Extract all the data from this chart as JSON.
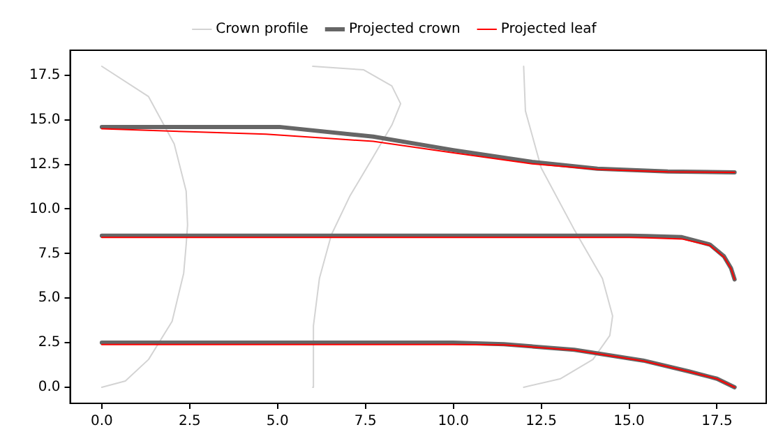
{
  "chart_data": {
    "type": "line",
    "xlim": [
      -0.9,
      18.9
    ],
    "ylim": [
      -0.9,
      18.9
    ],
    "xticks": [
      {
        "value": 0,
        "label": "0.0"
      },
      {
        "value": 2.5,
        "label": "2.5"
      },
      {
        "value": 5,
        "label": "5.0"
      },
      {
        "value": 7.5,
        "label": "7.5"
      },
      {
        "value": 10,
        "label": "10.0"
      },
      {
        "value": 12.5,
        "label": "12.5"
      },
      {
        "value": 15,
        "label": "15.0"
      },
      {
        "value": 17.5,
        "label": "17.5"
      }
    ],
    "yticks": [
      {
        "value": 0,
        "label": "0.0"
      },
      {
        "value": 2.5,
        "label": "2.5"
      },
      {
        "value": 5,
        "label": "5.0"
      },
      {
        "value": 7.5,
        "label": "7.5"
      },
      {
        "value": 10,
        "label": "10.0"
      },
      {
        "value": 12.5,
        "label": "12.5"
      },
      {
        "value": 15,
        "label": "15.0"
      },
      {
        "value": 17.5,
        "label": "17.5"
      }
    ],
    "grid": false,
    "legend": "top",
    "marker": "none",
    "line_style": "solid",
    "series": [
      {
        "name": "Crown profile",
        "color": "#d3d3d3",
        "x": [
          0,
          0.67,
          1.33,
          2.0,
          2.33,
          2.4,
          2.44,
          2.4,
          2.06,
          1.33,
          0
        ],
        "values": [
          0,
          0.35,
          1.56,
          3.7,
          6.4,
          8.0,
          9.1,
          11.0,
          13.65,
          16.3,
          18
        ]
      },
      {
        "color": "#d3d3d3",
        "x": [
          6,
          6.02,
          6.19,
          6.53,
          7.05,
          7.7,
          8.25,
          8.5,
          8.25,
          7.45,
          6
        ],
        "values": [
          0,
          3.45,
          6.1,
          8.55,
          10.7,
          12.85,
          14.7,
          15.9,
          16.9,
          17.8,
          18
        ]
      },
      {
        "color": "#d3d3d3",
        "x": [
          12,
          13.05,
          13.97,
          14.45,
          14.53,
          14.24,
          13.45,
          12.5,
          12.05,
          12
        ],
        "values": [
          0,
          0.48,
          1.56,
          2.9,
          4.0,
          6.1,
          8.8,
          12.3,
          15.5,
          18
        ]
      },
      {
        "name": "Projected crown",
        "color": "#666666",
        "x": [
          0,
          2.5,
          4.7,
          5.05,
          7.72,
          10,
          12.24,
          14.1,
          16.1,
          18
        ],
        "values": [
          14.6,
          14.6,
          14.6,
          14.6,
          14.06,
          13.3,
          12.64,
          12.26,
          12.1,
          12.05
        ]
      },
      {
        "name": "Projected leaf",
        "color": "#ff0000",
        "x": [
          0,
          2.5,
          4.67,
          6.66,
          7.72,
          10,
          12.24,
          14.1,
          16.1,
          18
        ],
        "values": [
          14.5,
          14.33,
          14.19,
          13.93,
          13.79,
          13.15,
          12.53,
          12.22,
          12.08,
          12.05
        ]
      },
      {
        "color": "#666666",
        "x": [
          0,
          5,
          10,
          15,
          15.5,
          16.5,
          17.3,
          17.7,
          17.9,
          18
        ],
        "values": [
          8.5,
          8.5,
          8.5,
          8.5,
          8.48,
          8.42,
          8.0,
          7.34,
          6.67,
          6.05
        ]
      },
      {
        "color": "#ff0000",
        "x": [
          0,
          5,
          10,
          15,
          15.5,
          16.5,
          17.3,
          17.7,
          17.9,
          18
        ],
        "values": [
          8.4,
          8.4,
          8.4,
          8.4,
          8.38,
          8.32,
          7.95,
          7.3,
          6.65,
          6.05
        ]
      },
      {
        "color": "#666666",
        "x": [
          0,
          5,
          10,
          11.44,
          13.44,
          15.4,
          16.7,
          17.5,
          18
        ],
        "values": [
          2.5,
          2.5,
          2.5,
          2.42,
          2.1,
          1.5,
          0.89,
          0.48,
          0
        ]
      },
      {
        "color": "#ff0000",
        "x": [
          0,
          5,
          10,
          11.44,
          13.44,
          15.4,
          16.7,
          17.5,
          18
        ],
        "values": [
          2.4,
          2.4,
          2.4,
          2.38,
          2.08,
          1.48,
          0.88,
          0.47,
          0
        ]
      }
    ]
  }
}
